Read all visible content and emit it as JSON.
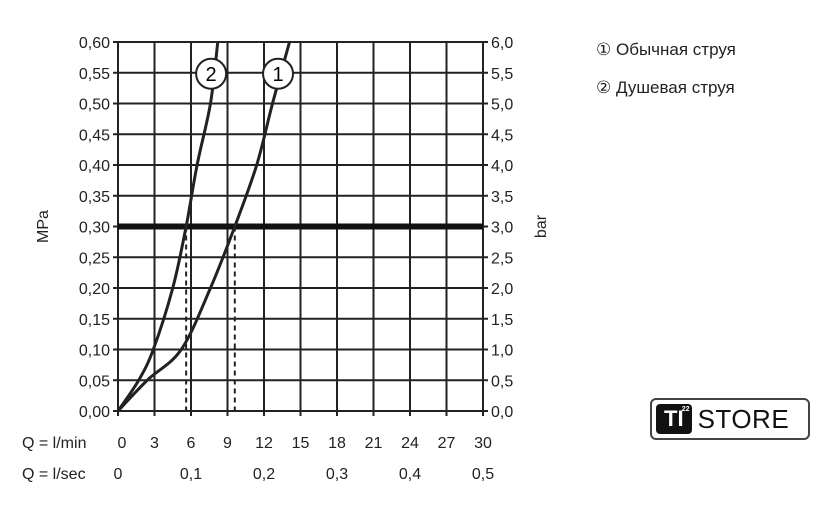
{
  "chart_data": {
    "type": "line",
    "xlabel_rows": [
      {
        "label": "Q = l/min",
        "ticks": [
          "0",
          "3",
          "6",
          "9",
          "12",
          "15",
          "18",
          "21",
          "24",
          "27",
          "30"
        ],
        "values": [
          0,
          3,
          6,
          9,
          12,
          15,
          18,
          21,
          24,
          27,
          30
        ]
      },
      {
        "label": "Q = l/sec",
        "ticks": [
          "0",
          "0,1",
          "0,2",
          "0,3",
          "0,4",
          "0,5"
        ],
        "values": [
          0,
          6,
          12,
          18,
          24,
          30
        ]
      }
    ],
    "ylabel_left": "MPa",
    "ylabel_right": "bar",
    "yticks_left": [
      "0,00",
      "0,05",
      "0,10",
      "0,15",
      "0,20",
      "0,25",
      "0,30",
      "0,35",
      "0,40",
      "0,45",
      "0,50",
      "0,55",
      "0,60"
    ],
    "yticks_right": [
      "0,0",
      "0,5",
      "1,0",
      "1,5",
      "2,0",
      "2,5",
      "3,0",
      "3,5",
      "4,0",
      "4,5",
      "5,0",
      "5,5",
      "6,0"
    ],
    "xlim": [
      0,
      30
    ],
    "ylim": [
      0,
      0.6
    ],
    "grid": true,
    "reference_line_y": 0.3,
    "reference_flows": [
      5.6,
      9.6
    ],
    "series": [
      {
        "name": "1",
        "x": [
          0,
          2.4,
          5.2,
          7.6,
          9.6,
          11.4,
          12.7,
          14.1
        ],
        "y": [
          0,
          0.05,
          0.1,
          0.2,
          0.3,
          0.4,
          0.5,
          0.6
        ]
      },
      {
        "name": "2",
        "x": [
          0,
          1.7,
          2.9,
          4.5,
          5.6,
          6.5,
          7.6,
          8.2
        ],
        "y": [
          0,
          0.05,
          0.1,
          0.2,
          0.3,
          0.4,
          0.5,
          0.6
        ]
      }
    ],
    "legend": [
      {
        "symbol": "①",
        "text": "Обычная струя"
      },
      {
        "symbol": "②",
        "text": "Душевая струя"
      }
    ],
    "legend_position": "top-right"
  },
  "logo": {
    "text": "TI STORE",
    "mark": "TI",
    "sup": "22",
    "word": "STORE"
  }
}
